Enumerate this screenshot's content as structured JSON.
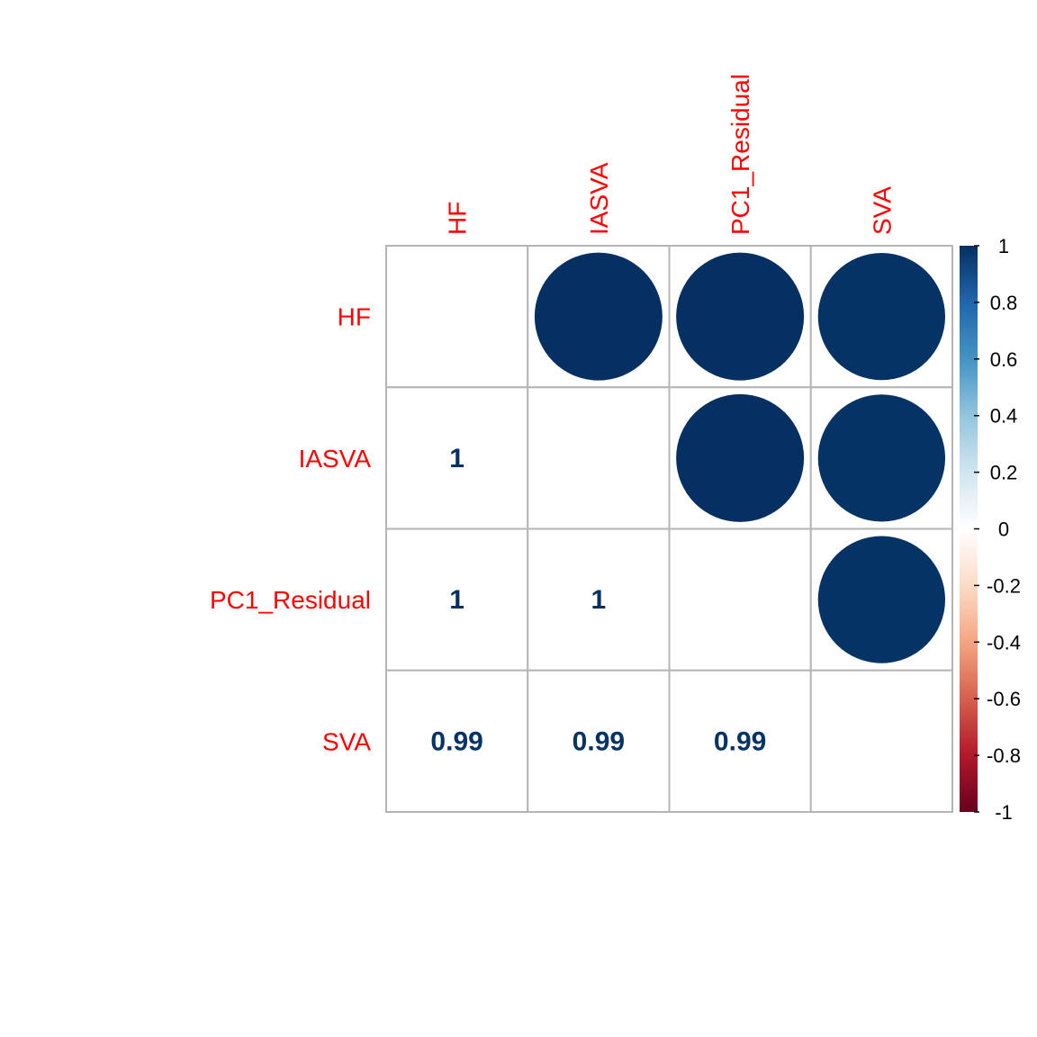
{
  "chart_data": {
    "type": "heatmap",
    "variables": [
      "HF",
      "IASVA",
      "PC1_Residual",
      "SVA"
    ],
    "correlation_matrix": [
      [
        1,
        1,
        1,
        0.99
      ],
      [
        1,
        1,
        1,
        0.99
      ],
      [
        1,
        1,
        1,
        0.99
      ],
      [
        0.99,
        0.99,
        0.99,
        1
      ]
    ],
    "upper_method": "circle",
    "lower_method": "number",
    "lower_labels": [
      {
        "row": "IASVA",
        "col": "HF",
        "text": "1",
        "value": 1
      },
      {
        "row": "PC1_Residual",
        "col": "HF",
        "text": "1",
        "value": 1
      },
      {
        "row": "PC1_Residual",
        "col": "IASVA",
        "text": "1",
        "value": 1
      },
      {
        "row": "SVA",
        "col": "HF",
        "text": "0.99",
        "value": 0.99
      },
      {
        "row": "SVA",
        "col": "IASVA",
        "text": "0.99",
        "value": 0.99
      },
      {
        "row": "SVA",
        "col": "PC1_Residual",
        "text": "0.99",
        "value": 0.99
      }
    ],
    "diagonal": "blank",
    "label_color": "#ff0000",
    "colorbar": {
      "range": [
        -1,
        1
      ],
      "ticks": [
        "1",
        "0.8",
        "0.6",
        "0.4",
        "0.2",
        "0",
        "-0.2",
        "-0.4",
        "-0.6",
        "-0.8",
        "-1"
      ],
      "tick_values": [
        1,
        0.8,
        0.6,
        0.4,
        0.2,
        0,
        -0.2,
        -0.4,
        -0.6,
        -0.8,
        -1
      ],
      "colors": [
        "#67001f",
        "#b2182b",
        "#d6604d",
        "#f4a582",
        "#fddbc7",
        "#ffffff",
        "#d1e5f0",
        "#92c5de",
        "#4393c3",
        "#2166ac",
        "#053061"
      ],
      "placement": "right"
    }
  }
}
